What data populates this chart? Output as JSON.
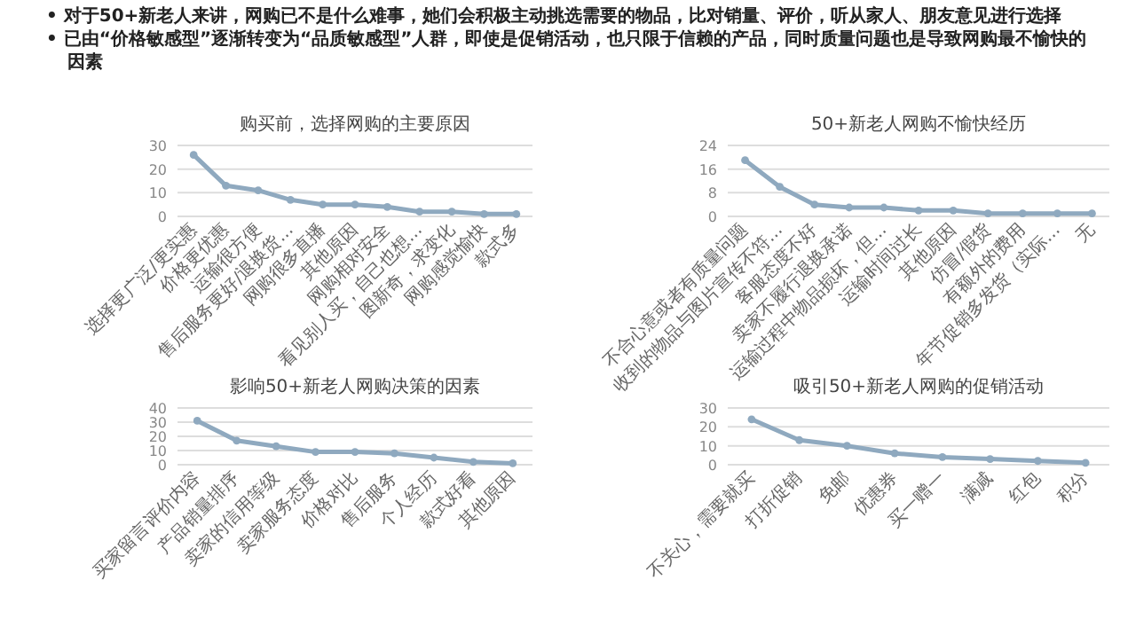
{
  "chart_data": [
    {
      "type": "other",
      "annotations": [
        "• 对于50+新老人来讲，网购已不是什么难事，她们会积极主动挑选需要的物品，比对销量、评价，听从家人、朋友意见进行选择",
        "• 已由“价格敏感型”逐渐转变为“品质敏感型”人群，即使是促销活动，也只限于信赖的产品，同时质量问题也是导致网购最不愉快的因素"
      ]
    },
    {
      "type": "line",
      "title": "购买前，选择网购的主要原因",
      "categories": [
        "选择更广泛/更实惠",
        "价格更优惠",
        "运输很方便",
        "售后服务更好/退换货...",
        "网购很多直播",
        "其他原因",
        "网购相对安全",
        "看见别人买，自己也想...",
        "图新奇，求变化",
        "网购感觉愉快",
        "款式多"
      ],
      "values": [
        26,
        13,
        11,
        7,
        5,
        5,
        4,
        2,
        2,
        1,
        1
      ],
      "color": "#8fa9bf",
      "ylim": [
        0,
        30
      ],
      "yticks": [
        0,
        10,
        20,
        30
      ],
      "grid": "y",
      "marker": "circle"
    },
    {
      "type": "line",
      "title": "50+新老人网购不愉快经历",
      "categories": [
        "不合心意或者有质量问题",
        "收到的物品与图片宣传不符...",
        "客服态度不好",
        "卖家不履行退换承诺",
        "运输过程中物品损坏，但...",
        "运输时间过长",
        "其他原因",
        "仿冒/假货",
        "有额外的费用",
        "年节促销多发货（实际...",
        "无"
      ],
      "values": [
        19,
        10,
        4,
        3,
        3,
        2,
        2,
        1,
        1,
        1,
        1
      ],
      "color": "#8fa9bf",
      "ylim": [
        0,
        24
      ],
      "yticks": [
        0,
        8,
        16,
        24
      ],
      "grid": "y",
      "marker": "circle"
    },
    {
      "type": "line",
      "title": "影响50+新老人网购决策的因素",
      "categories": [
        "买家留言评价内容",
        "产品销量排序",
        "卖家的信用等级",
        "卖家服务态度",
        "价格对比",
        "售后服务",
        "个人经历",
        "款式好看",
        "其他原因"
      ],
      "values": [
        31,
        17,
        13,
        9,
        9,
        8,
        5,
        2,
        1
      ],
      "color": "#8fa9bf",
      "ylim": [
        0,
        40
      ],
      "yticks": [
        0,
        10,
        20,
        30,
        40
      ],
      "grid": "y",
      "marker": "circle"
    },
    {
      "type": "line",
      "title": "吸引50+新老人网购的促销活动",
      "categories": [
        "不关心，需要就买",
        "打折促销",
        "免邮",
        "优惠券",
        "买一赠一",
        "满减",
        "红包",
        "积分"
      ],
      "values": [
        24,
        13,
        10,
        6,
        4,
        3,
        2,
        1
      ],
      "color": "#8fa9bf",
      "ylim": [
        0,
        30
      ],
      "yticks": [
        0,
        10,
        20,
        30
      ],
      "grid": "y",
      "marker": "circle"
    }
  ]
}
